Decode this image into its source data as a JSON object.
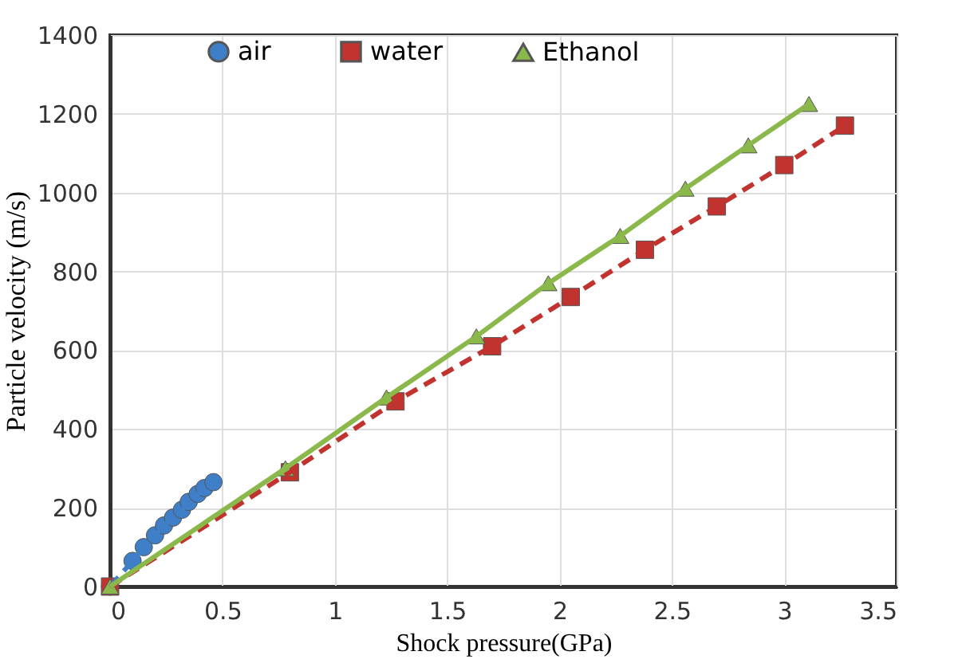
{
  "chart_data": {
    "type": "line",
    "xlabel": "Shock pressure(GPa)",
    "ylabel": "Particle velocity (m/s)",
    "xlim": [
      0,
      3.5
    ],
    "xticks": [
      0,
      0.5,
      1,
      1.5,
      2,
      2.5,
      3,
      3.5
    ],
    "ylim": [
      0,
      1400
    ],
    "yticks": [
      0,
      200,
      400,
      600,
      800,
      1000,
      1200,
      1400
    ],
    "grid": true,
    "legend": "top",
    "series": [
      {
        "name": "air",
        "color": "#3f7fc8",
        "marker": "circle",
        "line_style": "dashed",
        "x": [
          0,
          0.1,
          0.15,
          0.2,
          0.24,
          0.28,
          0.32,
          0.35,
          0.39,
          0.42,
          0.46
        ],
        "values": [
          0,
          65,
          100,
          130,
          155,
          175,
          195,
          215,
          235,
          250,
          265
        ]
      },
      {
        "name": "water",
        "color": "#c0332f",
        "marker": "square",
        "line_style": "dashed",
        "x": [
          0,
          0.8,
          1.27,
          1.7,
          2.05,
          2.38,
          2.7,
          3.0,
          3.27
        ],
        "values": [
          0,
          290,
          470,
          610,
          735,
          855,
          965,
          1070,
          1170
        ]
      },
      {
        "name": "Ethanol",
        "color": "#8bb84a",
        "marker": "triangle",
        "line_style": "solid",
        "x": [
          0,
          0.78,
          1.23,
          1.63,
          1.95,
          2.27,
          2.56,
          2.84,
          3.11
        ],
        "values": [
          0,
          300,
          480,
          635,
          770,
          890,
          1010,
          1120,
          1225
        ]
      }
    ]
  }
}
